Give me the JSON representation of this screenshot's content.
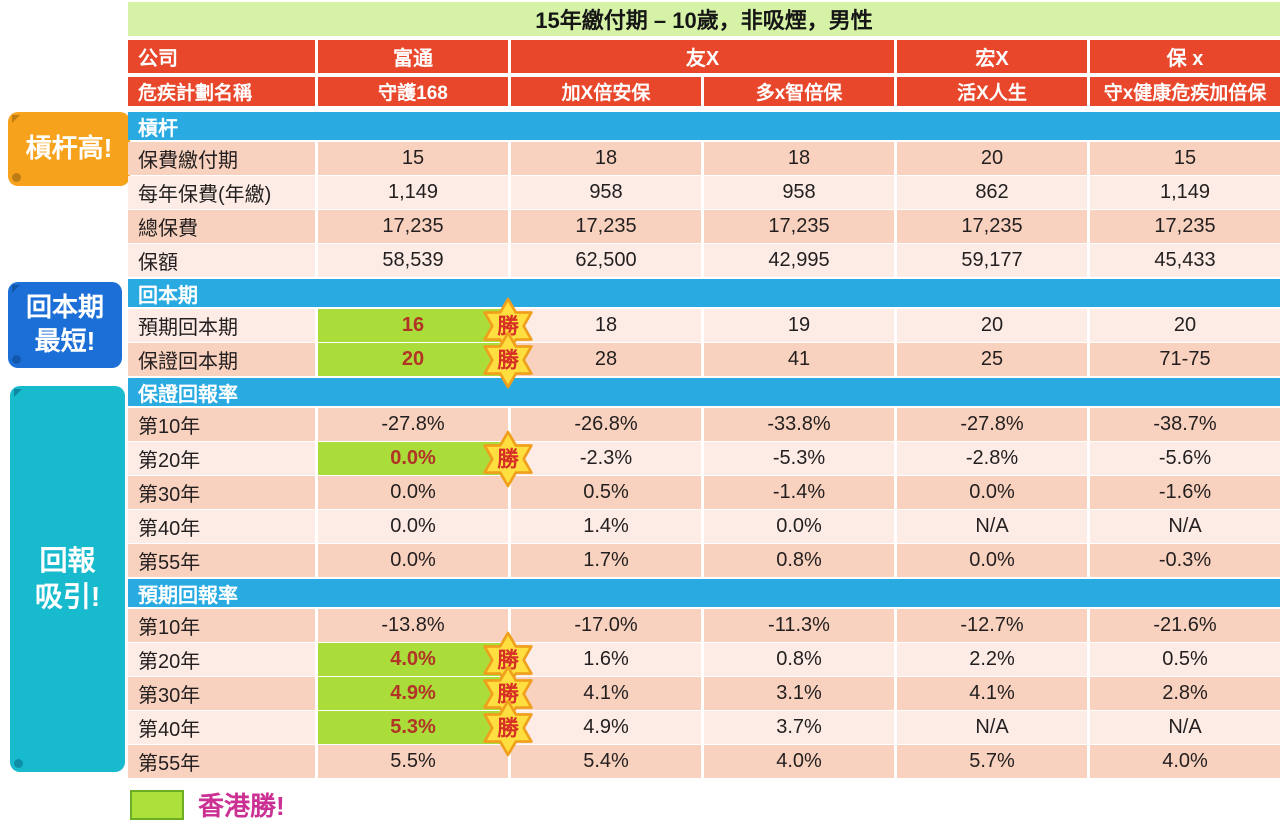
{
  "title": "15年繳付期 – 10歲，非吸煙，男性",
  "callouts": {
    "leverage": "槓杆高!",
    "payback_line1": "回本期",
    "payback_line2": "最短!",
    "returns_line1": "回報",
    "returns_line2": "吸引!"
  },
  "header": {
    "company_label": "公司",
    "plan_label": "危疾計劃名稱",
    "companies": [
      {
        "name": "富通"
      },
      {
        "name": "友X"
      },
      {
        "name": "宏X"
      },
      {
        "name": "保 x"
      }
    ],
    "plans": [
      "守護168",
      "加X倍安保",
      "多x智倍保",
      "活X人生",
      "守x健康危疾加倍保"
    ]
  },
  "win_badge_text": "勝",
  "legend": {
    "text": "香港勝!"
  },
  "colors": {
    "header_red": "#e8472b",
    "section_blue": "#29abe2",
    "row_dark": "#f8d2be",
    "row_light": "#fcece5",
    "highlight_green": "#abdd3a",
    "highlight_text": "#b13427",
    "badge_fill": "#ffdf3f",
    "badge_border": "#ef9f1c",
    "badge_text": "#d62f26",
    "title_bg": "#d6f2a6",
    "callout_orange": "#f7a21d",
    "callout_blue": "#1b6fd6",
    "callout_teal": "#18bace",
    "legend_swatch": "#abe13a",
    "legend_border": "#6cae22",
    "legend_text": "#cb3093",
    "value_text": "#231f20"
  },
  "chart_data": {
    "type": "table",
    "title": "15年繳付期 – 10歲，非吸煙，男性",
    "columns": [
      "富通 守護168",
      "友X 加X倍安保",
      "友X 多x智倍保",
      "宏X 活X人生",
      "保x 守x健康危疾加倍保"
    ],
    "sections": [
      {
        "header": "槓杆",
        "alt_start_light": false,
        "rows": [
          {
            "label": "保費繳付期",
            "values": [
              "15",
              "18",
              "18",
              "20",
              "15"
            ],
            "win": false
          },
          {
            "label": "每年保費(年繳)",
            "values": [
              "1,149",
              "958",
              "958",
              "862",
              "1,149"
            ],
            "win": false
          },
          {
            "label": "總保費",
            "values": [
              "17,235",
              "17,235",
              "17,235",
              "17,235",
              "17,235"
            ],
            "win": false
          },
          {
            "label": "保額",
            "values": [
              "58,539",
              "62,500",
              "42,995",
              "59,177",
              "45,433"
            ],
            "win": false
          }
        ]
      },
      {
        "header": "回本期",
        "alt_start_light": true,
        "rows": [
          {
            "label": "預期回本期",
            "values": [
              "16",
              "18",
              "19",
              "20",
              "20"
            ],
            "win": true
          },
          {
            "label": "保證回本期",
            "values": [
              "20",
              "28",
              "41",
              "25",
              "71-75"
            ],
            "win": true
          }
        ]
      },
      {
        "header": "保證回報率",
        "alt_start_light": false,
        "rows": [
          {
            "label": "第10年",
            "values": [
              "-27.8%",
              "-26.8%",
              "-33.8%",
              "-27.8%",
              "-38.7%"
            ],
            "win": false
          },
          {
            "label": "第20年",
            "values": [
              "0.0%",
              "-2.3%",
              "-5.3%",
              "-2.8%",
              "-5.6%"
            ],
            "win": true
          },
          {
            "label": "第30年",
            "values": [
              "0.0%",
              "0.5%",
              "-1.4%",
              "0.0%",
              "-1.6%"
            ],
            "win": false
          },
          {
            "label": "第40年",
            "values": [
              "0.0%",
              "1.4%",
              "0.0%",
              "N/A",
              "N/A"
            ],
            "win": false
          },
          {
            "label": "第55年",
            "values": [
              "0.0%",
              "1.7%",
              "0.8%",
              "0.0%",
              "-0.3%"
            ],
            "win": false
          }
        ]
      },
      {
        "header": "預期回報率",
        "alt_start_light": false,
        "rows": [
          {
            "label": "第10年",
            "values": [
              "-13.8%",
              "-17.0%",
              "-11.3%",
              "-12.7%",
              "-21.6%"
            ],
            "win": false
          },
          {
            "label": "第20年",
            "values": [
              "4.0%",
              "1.6%",
              "0.8%",
              "2.2%",
              "0.5%"
            ],
            "win": true
          },
          {
            "label": "第30年",
            "values": [
              "4.9%",
              "4.1%",
              "3.1%",
              "4.1%",
              "2.8%"
            ],
            "win": true
          },
          {
            "label": "第40年",
            "values": [
              "5.3%",
              "4.9%",
              "3.7%",
              "N/A",
              "N/A"
            ],
            "win": true
          },
          {
            "label": "第55年",
            "values": [
              "5.5%",
              "5.4%",
              "4.0%",
              "5.7%",
              "4.0%"
            ],
            "win": false
          }
        ]
      }
    ]
  }
}
